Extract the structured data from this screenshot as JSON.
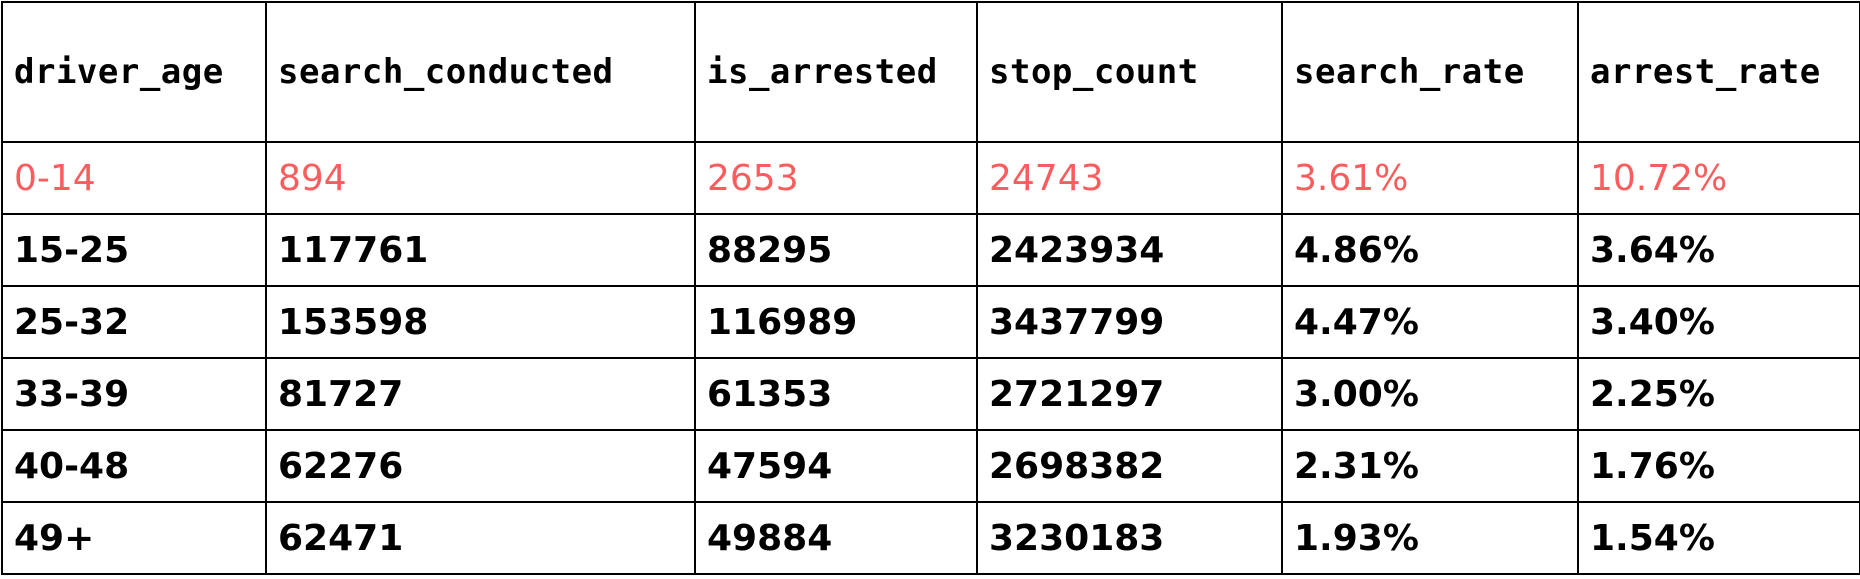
{
  "table": {
    "columns": [
      "driver_age",
      "search_conducted",
      "is_arrested",
      "stop_count",
      "search_rate",
      "arrest_rate"
    ],
    "highlight_color": "#fb5c5d",
    "rows": [
      [
        "0-14",
        "894",
        "2653",
        "24743",
        "3.61%",
        "10.72%"
      ],
      [
        "15-25",
        "117761",
        "88295",
        "2423934",
        "4.86%",
        "3.64%"
      ],
      [
        "25-32",
        "153598",
        "116989",
        "3437799",
        "4.47%",
        "3.40%"
      ],
      [
        "33-39",
        "81727",
        "61353",
        "2721297",
        "3.00%",
        "2.25%"
      ],
      [
        "40-48",
        "62276",
        "47594",
        "2698382",
        "2.31%",
        "1.76%"
      ],
      [
        "49+",
        "62471",
        "49884",
        "3230183",
        "1.93%",
        "1.54%"
      ]
    ]
  }
}
